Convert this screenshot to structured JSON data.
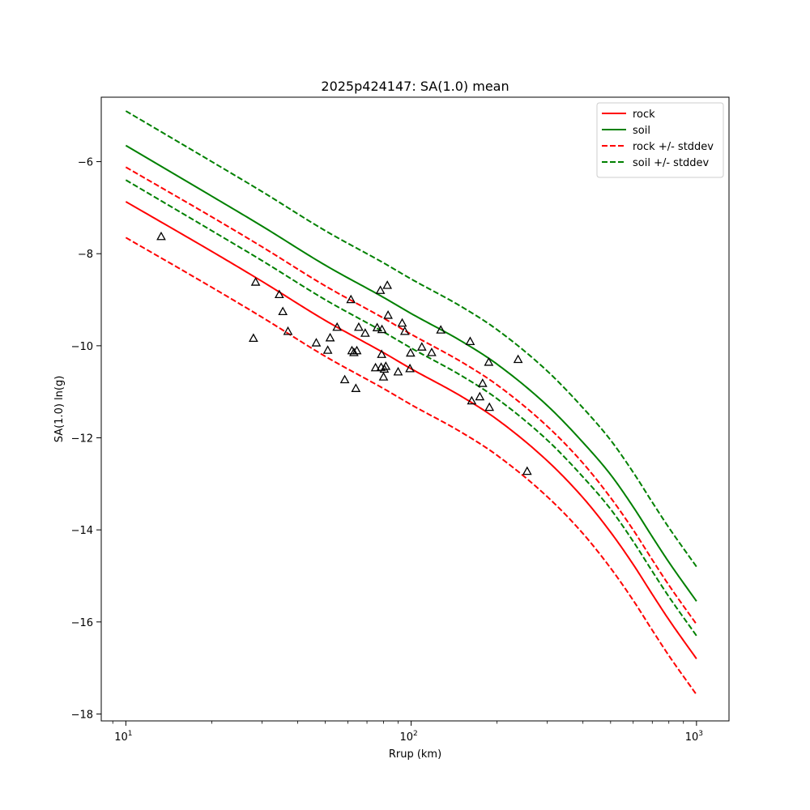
{
  "chart_data": {
    "type": "line",
    "title": "2025p424147: SA(1.0) mean",
    "xlabel": "Rrup (km)",
    "ylabel": "SA(1.0) ln(g)",
    "xscale": "log",
    "xlim": [
      8.2,
      1300
    ],
    "ylim": [
      -18.15,
      -4.6
    ],
    "x_ticks": [
      {
        "value": 10,
        "base": "10",
        "exp": "1"
      },
      {
        "value": 100,
        "base": "10",
        "exp": "2"
      },
      {
        "value": 1000,
        "base": "10",
        "exp": "3"
      }
    ],
    "y_ticks": [
      {
        "value": -6,
        "label": "−6"
      },
      {
        "value": -8,
        "label": "−8"
      },
      {
        "value": -10,
        "label": "−10"
      },
      {
        "value": -12,
        "label": "−12"
      },
      {
        "value": -14,
        "label": "−14"
      },
      {
        "value": -16,
        "label": "−16"
      },
      {
        "value": -18,
        "label": "−18"
      }
    ],
    "grid": false,
    "legend_position": "top-right",
    "series": [
      {
        "name": "rock",
        "color": "#ff0000",
        "style": "solid",
        "x": [
          10,
          20,
          30,
          50,
          80,
          100,
          150,
          200,
          300,
          400,
          500,
          600,
          700,
          800,
          1000
        ],
        "y": [
          -6.87,
          -7.95,
          -8.6,
          -9.45,
          -10.15,
          -10.5,
          -11.1,
          -11.6,
          -12.5,
          -13.3,
          -14.05,
          -14.75,
          -15.4,
          -15.95,
          -16.8
        ]
      },
      {
        "name": "soil",
        "color": "#008000",
        "style": "solid",
        "x": [
          10,
          20,
          30,
          50,
          80,
          100,
          150,
          200,
          300,
          400,
          500,
          600,
          700,
          800,
          1000
        ],
        "y": [
          -5.65,
          -6.75,
          -7.4,
          -8.25,
          -8.95,
          -9.3,
          -9.9,
          -10.4,
          -11.3,
          -12.1,
          -12.8,
          -13.5,
          -14.15,
          -14.7,
          -15.55
        ]
      },
      {
        "name": "rock +/- stddev",
        "color": "#ff0000",
        "style": "dashed",
        "x": [
          10,
          20,
          30,
          50,
          80,
          100,
          150,
          200,
          300,
          400,
          500,
          600,
          700,
          800,
          1000
        ],
        "y": [
          -6.12,
          -7.2,
          -7.85,
          -8.7,
          -9.4,
          -9.75,
          -10.35,
          -10.85,
          -11.75,
          -12.55,
          -13.3,
          -14.0,
          -14.65,
          -15.2,
          -16.05
        ]
      },
      {
        "color": "#ff0000",
        "style": "dashed",
        "x": [
          10,
          20,
          30,
          50,
          80,
          100,
          150,
          200,
          300,
          400,
          500,
          600,
          700,
          800,
          1000
        ],
        "y": [
          -7.65,
          -8.73,
          -9.38,
          -10.23,
          -10.93,
          -11.28,
          -11.88,
          -12.38,
          -13.28,
          -14.08,
          -14.83,
          -15.53,
          -16.18,
          -16.73,
          -17.58
        ]
      },
      {
        "name": "soil +/- stddev",
        "color": "#008000",
        "style": "dashed",
        "x": [
          10,
          20,
          30,
          50,
          80,
          100,
          150,
          200,
          300,
          400,
          500,
          600,
          700,
          800,
          1000
        ],
        "y": [
          -4.9,
          -6.0,
          -6.65,
          -7.5,
          -8.2,
          -8.55,
          -9.15,
          -9.65,
          -10.55,
          -11.35,
          -12.05,
          -12.75,
          -13.4,
          -13.95,
          -14.8
        ]
      },
      {
        "color": "#008000",
        "style": "dashed",
        "x": [
          10,
          20,
          30,
          50,
          80,
          100,
          150,
          200,
          300,
          400,
          500,
          600,
          700,
          800,
          1000
        ],
        "y": [
          -6.4,
          -7.5,
          -8.15,
          -9.0,
          -9.7,
          -10.05,
          -10.65,
          -11.15,
          -12.05,
          -12.85,
          -13.55,
          -14.25,
          -14.9,
          -15.45,
          -16.3
        ]
      }
    ],
    "observations": {
      "marker": "triangle",
      "color": "#000000",
      "x": [
        13.3,
        28.0,
        28.5,
        34.5,
        35.5,
        37.0,
        46.5,
        51.0,
        52.0,
        55.0,
        58.5,
        61.5,
        62.0,
        63.0,
        64.0,
        64.5,
        65.5,
        69.0,
        75.0,
        76.0,
        78.0,
        78.5,
        78.8,
        79.0,
        80.0,
        80.5,
        81.5,
        82.5,
        83.0,
        90.0,
        93.0,
        95.0,
        99.0,
        99.5,
        109.0,
        118.0,
        127.0,
        161.0,
        163.0,
        174.0,
        178.0,
        187.0,
        188.0,
        237.0,
        255.0
      ],
      "y": [
        -7.63,
        -9.84,
        -8.62,
        -8.89,
        -9.26,
        -9.69,
        -9.94,
        -10.1,
        -9.83,
        -9.6,
        -10.74,
        -9.0,
        -10.11,
        -10.15,
        -10.93,
        -10.11,
        -9.6,
        -9.73,
        -10.48,
        -9.61,
        -8.8,
        -10.47,
        -10.19,
        -9.65,
        -10.68,
        -10.51,
        -10.45,
        -8.69,
        -9.34,
        -10.57,
        -9.51,
        -9.69,
        -10.5,
        -10.16,
        -10.03,
        -10.15,
        -9.66,
        -9.91,
        -11.2,
        -11.11,
        -10.82,
        -10.36,
        -11.34,
        -10.3,
        -12.73
      ]
    }
  }
}
